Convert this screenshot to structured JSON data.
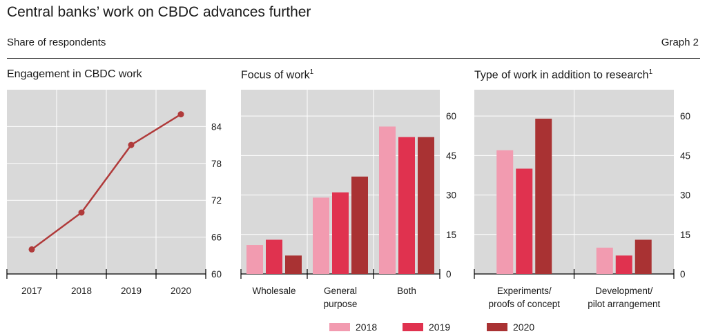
{
  "title": "Central banks’ work on CBDC advances further",
  "subtitle": "Share of respondents",
  "graph_label": "Graph 2",
  "colors": {
    "2018": "#f29bb0",
    "2019": "#e0324f",
    "2020": "#a93233",
    "panel_bg": "#d9d9d9",
    "grid": "#ffffff"
  },
  "legend": [
    {
      "label": "2018",
      "color": "#f29bb0"
    },
    {
      "label": "2019",
      "color": "#e0324f"
    },
    {
      "label": "2020",
      "color": "#a93233"
    }
  ],
  "chart_data": [
    {
      "type": "line",
      "title": "Engagement in CBDC work",
      "x": [
        "2017",
        "2018",
        "2019",
        "2020"
      ],
      "series": [
        {
          "values": [
            64,
            70,
            81,
            86
          ],
          "color": "#b03a3a"
        }
      ],
      "ylim": [
        60,
        90
      ],
      "yticks": [
        60,
        66,
        72,
        78,
        84
      ],
      "ylabel_position": "right",
      "grid": true
    },
    {
      "type": "bar",
      "title": "Focus of work",
      "title_footnote": "1",
      "categories": [
        "Wholesale",
        "General purpose",
        "Both"
      ],
      "category_labels": [
        [
          "Wholesale"
        ],
        [
          "General",
          "purpose"
        ],
        [
          "Both"
        ]
      ],
      "series": [
        {
          "name": "2018",
          "values": [
            11,
            29,
            56
          ]
        },
        {
          "name": "2019",
          "values": [
            13,
            31,
            52
          ]
        },
        {
          "name": "2020",
          "values": [
            7,
            37,
            52
          ]
        }
      ],
      "ylim": [
        0,
        70
      ],
      "yticks": [
        0,
        15,
        30,
        45,
        60
      ],
      "ylabel_position": "right",
      "grid": true
    },
    {
      "type": "bar",
      "title": "Type of work in addition to research",
      "title_footnote": "1",
      "categories": [
        "Experiments/ proofs of concept",
        "Development/ pilot arrangement"
      ],
      "category_labels": [
        [
          "Experiments/",
          "proofs of concept"
        ],
        [
          "Development/",
          "pilot arrangement"
        ]
      ],
      "series": [
        {
          "name": "2018",
          "values": [
            47,
            10
          ]
        },
        {
          "name": "2019",
          "values": [
            40,
            7
          ]
        },
        {
          "name": "2020",
          "values": [
            59,
            13
          ]
        }
      ],
      "ylim": [
        0,
        70
      ],
      "yticks": [
        0,
        15,
        30,
        45,
        60
      ],
      "ylabel_position": "right",
      "grid": true
    }
  ]
}
